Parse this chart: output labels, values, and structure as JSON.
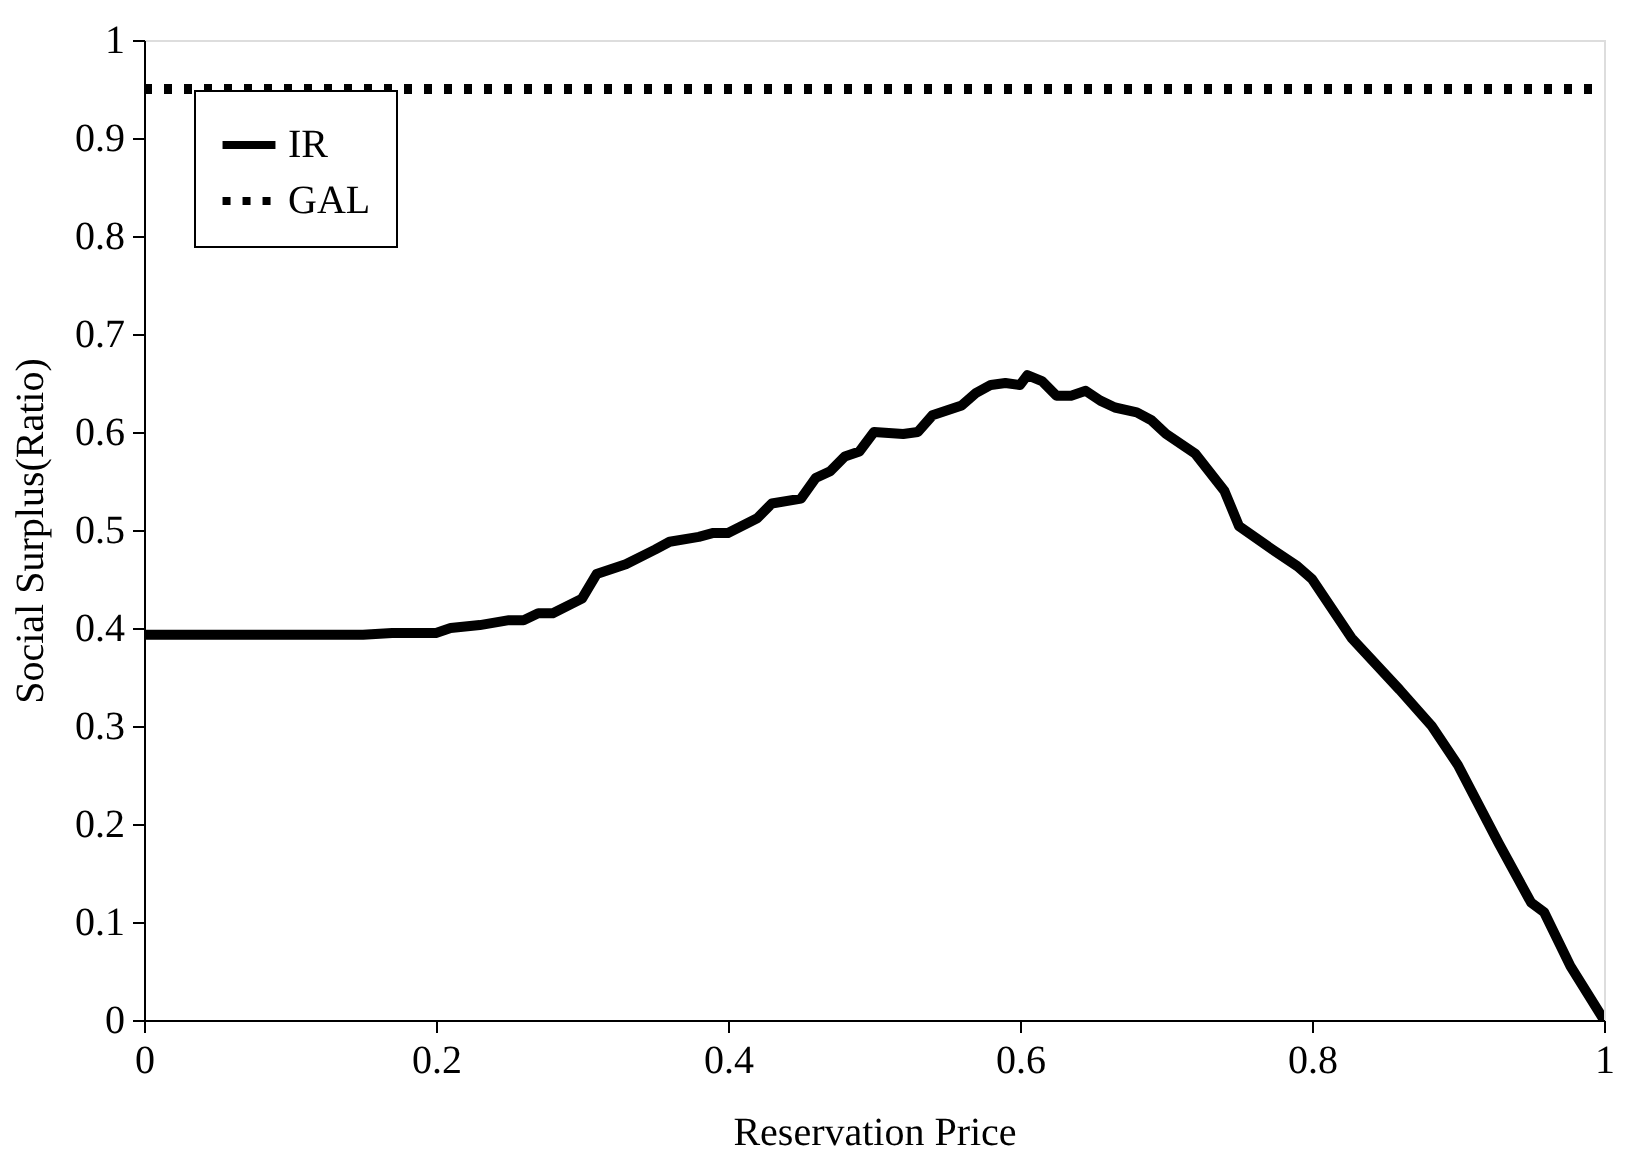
{
  "chart_data": {
    "type": "line",
    "xlabel": "Reservation Price",
    "ylabel": "Social Surplus(Ratio)",
    "xlim": [
      0,
      1
    ],
    "ylim": [
      0,
      1
    ],
    "xticks": [
      0,
      0.2,
      0.4,
      0.6,
      0.8,
      1
    ],
    "yticks": [
      0,
      0.1,
      0.2,
      0.3,
      0.4,
      0.5,
      0.6,
      0.7,
      0.8,
      0.9,
      1
    ],
    "legend": "top left",
    "grid": false,
    "series": [
      {
        "name": "IR",
        "color": "#000000",
        "line_style": "solid",
        "x": [
          0,
          0.05,
          0.1,
          0.15,
          0.17,
          0.2,
          0.21,
          0.23,
          0.25,
          0.26,
          0.27,
          0.28,
          0.3,
          0.31,
          0.33,
          0.35,
          0.36,
          0.38,
          0.39,
          0.4,
          0.42,
          0.43,
          0.45,
          0.46,
          0.47,
          0.48,
          0.49,
          0.5,
          0.52,
          0.53,
          0.54,
          0.56,
          0.57,
          0.58,
          0.59,
          0.6,
          0.605,
          0.615,
          0.625,
          0.635,
          0.645,
          0.655,
          0.665,
          0.68,
          0.69,
          0.7,
          0.72,
          0.74,
          0.75,
          0.773,
          0.79,
          0.8,
          0.827,
          0.86,
          0.882,
          0.9,
          0.928,
          0.95,
          0.959,
          0.977,
          1.0
        ],
        "values": [
          0.393,
          0.393,
          0.393,
          0.393,
          0.395,
          0.395,
          0.4,
          0.403,
          0.408,
          0.408,
          0.415,
          0.415,
          0.43,
          0.455,
          0.465,
          0.48,
          0.488,
          0.493,
          0.497,
          0.497,
          0.512,
          0.527,
          0.532,
          0.553,
          0.56,
          0.575,
          0.58,
          0.6,
          0.598,
          0.6,
          0.617,
          0.627,
          0.64,
          0.648,
          0.65,
          0.648,
          0.658,
          0.652,
          0.637,
          0.637,
          0.642,
          0.632,
          0.625,
          0.62,
          0.612,
          0.598,
          0.578,
          0.54,
          0.504,
          0.48,
          0.463,
          0.45,
          0.39,
          0.337,
          0.3,
          0.26,
          0.18,
          0.12,
          0.11,
          0.055,
          0.0
        ]
      },
      {
        "name": "GAL",
        "color": "#000000",
        "line_style": "dotted",
        "x": [
          0,
          1
        ],
        "values": [
          0.95,
          0.95
        ]
      }
    ]
  }
}
